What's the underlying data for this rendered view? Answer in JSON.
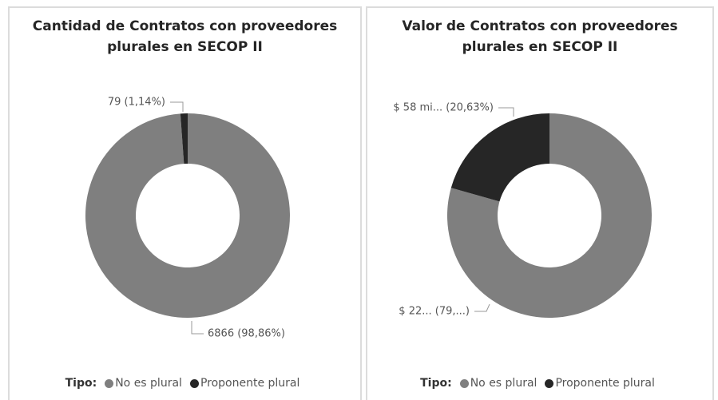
{
  "chart_data": [
    {
      "type": "pie",
      "title": "Cantidad de Contratos con proveedores plurales en SECOP II",
      "categories": [
        "No es plural",
        "Proponente plural"
      ],
      "values": [
        6866,
        79
      ],
      "value_labels": [
        "6866 (98,86%)",
        "79 (1,14%)"
      ],
      "colors": [
        "#7f7f7f",
        "#262626"
      ],
      "legend_title": "Tipo:"
    },
    {
      "type": "pie",
      "title": "Valor de Contratos con proveedores plurales en SECOP II",
      "categories": [
        "No es plural",
        "Proponente plural"
      ],
      "values": [
        79.37,
        20.63
      ],
      "value_labels": [
        "$ 22... (79,...)",
        "$ 58 mi... (20,63%)"
      ],
      "colors": [
        "#7f7f7f",
        "#262626"
      ],
      "legend_title": "Tipo:"
    }
  ]
}
